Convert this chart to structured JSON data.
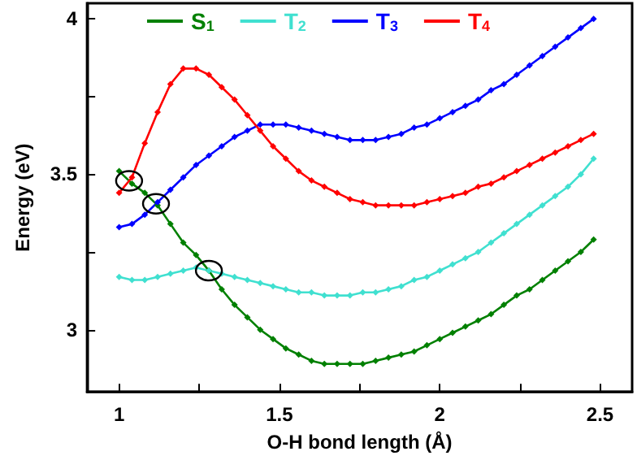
{
  "chart_data": {
    "type": "line",
    "xlabel": "O-H bond length (Å)",
    "ylabel": "Energy (eV)",
    "x": [
      1.0,
      1.04,
      1.08,
      1.12,
      1.16,
      1.2,
      1.24,
      1.28,
      1.32,
      1.36,
      1.4,
      1.44,
      1.48,
      1.52,
      1.56,
      1.6,
      1.64,
      1.68,
      1.72,
      1.76,
      1.8,
      1.84,
      1.88,
      1.92,
      1.96,
      2.0,
      2.04,
      2.08,
      2.12,
      2.16,
      2.2,
      2.24,
      2.28,
      2.32,
      2.36,
      2.4,
      2.44,
      2.48
    ],
    "series": [
      {
        "name": "S$_{1}$",
        "color": "#008000",
        "values": [
          3.51,
          3.47,
          3.44,
          3.4,
          3.34,
          3.28,
          3.24,
          3.19,
          3.13,
          3.08,
          3.04,
          3.0,
          2.97,
          2.94,
          2.92,
          2.9,
          2.89,
          2.89,
          2.89,
          2.89,
          2.9,
          2.91,
          2.92,
          2.93,
          2.95,
          2.97,
          2.99,
          3.01,
          3.03,
          3.05,
          3.08,
          3.11,
          3.13,
          3.16,
          3.19,
          3.22,
          3.25,
          3.29
        ]
      },
      {
        "name": "T$_{2}$",
        "color": "#40e0d0",
        "values": [
          3.17,
          3.16,
          3.16,
          3.17,
          3.18,
          3.19,
          3.2,
          3.19,
          3.18,
          3.17,
          3.16,
          3.15,
          3.14,
          3.13,
          3.12,
          3.12,
          3.11,
          3.11,
          3.11,
          3.12,
          3.12,
          3.13,
          3.14,
          3.16,
          3.17,
          3.19,
          3.21,
          3.23,
          3.25,
          3.28,
          3.31,
          3.34,
          3.37,
          3.4,
          3.43,
          3.46,
          3.5,
          3.55
        ]
      },
      {
        "name": "T$_{3}$",
        "color": "#0000ff",
        "values": [
          3.33,
          3.34,
          3.37,
          3.41,
          3.45,
          3.49,
          3.53,
          3.56,
          3.59,
          3.62,
          3.64,
          3.66,
          3.66,
          3.66,
          3.65,
          3.64,
          3.63,
          3.62,
          3.61,
          3.61,
          3.61,
          3.62,
          3.63,
          3.65,
          3.66,
          3.68,
          3.7,
          3.72,
          3.74,
          3.77,
          3.79,
          3.82,
          3.85,
          3.88,
          3.91,
          3.94,
          3.97,
          4.0
        ]
      },
      {
        "name": "T$_{4}$",
        "color": "#ff0000",
        "values": [
          3.44,
          3.49,
          3.6,
          3.7,
          3.79,
          3.84,
          3.84,
          3.82,
          3.78,
          3.74,
          3.69,
          3.64,
          3.59,
          3.55,
          3.51,
          3.48,
          3.46,
          3.44,
          3.42,
          3.41,
          3.4,
          3.4,
          3.4,
          3.4,
          3.41,
          3.42,
          3.43,
          3.44,
          3.46,
          3.47,
          3.49,
          3.51,
          3.53,
          3.55,
          3.57,
          3.59,
          3.61,
          3.63
        ]
      }
    ],
    "xlim": [
      0.9,
      2.6
    ],
    "ylim": [
      2.8,
      4.05
    ],
    "xticks": [
      1,
      {
        "value": 1.25,
        "label": null
      },
      1.5,
      {
        "value": 1.75,
        "label": null
      },
      2,
      {
        "value": 2.25,
        "label": null
      },
      2.5
    ],
    "yticks": [
      3,
      {
        "value": 3.25,
        "label": null
      },
      3.5,
      {
        "value": 3.75,
        "label": null
      },
      4
    ],
    "grid": false,
    "legend": "top",
    "marker": "diamond",
    "line_style": "solid"
  }
}
